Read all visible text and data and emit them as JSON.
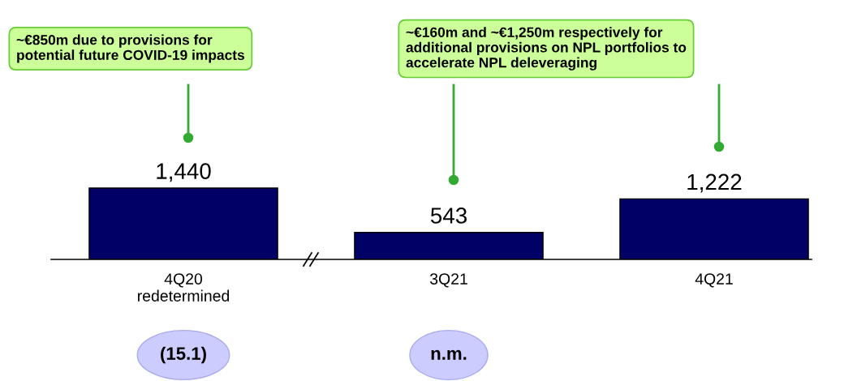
{
  "chart_data": {
    "type": "bar",
    "categories": [
      "4Q20\nredetermined",
      "3Q21",
      "4Q21"
    ],
    "values": [
      1440,
      543,
      1222
    ],
    "color": "#000066",
    "value_labels": [
      "1,440",
      "543",
      "1,222"
    ],
    "grid": false,
    "legend": false,
    "tick_labels": "x",
    "annotations": [
      "~€850m due to provisions for\npotential future COVID-19 impacts",
      "~€160m and ~€1,250m respectively for\nadditional provisions on NPL portfolios to\naccelerate NPL deleveraging",
      "(15.1)",
      "n.m."
    ]
  }
}
